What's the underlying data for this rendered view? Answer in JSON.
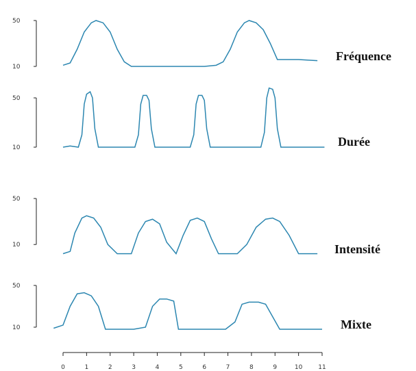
{
  "chart_data": [
    {
      "type": "line",
      "title": "Fréquence",
      "color": "#2b86b0",
      "x": [
        0,
        0.3,
        0.6,
        0.9,
        1.2,
        1.4,
        1.7,
        2.0,
        2.3,
        2.6,
        2.9,
        4,
        5,
        6,
        6.5,
        6.8,
        7.1,
        7.4,
        7.7,
        7.9,
        8.2,
        8.5,
        8.8,
        9.1,
        10,
        10.8
      ],
      "values": [
        11,
        13,
        25,
        40,
        48,
        50,
        48,
        40,
        25,
        14,
        10,
        10,
        10,
        10,
        11,
        14,
        25,
        40,
        48,
        50,
        48,
        42,
        30,
        16,
        16,
        15
      ],
      "xlim": [
        0,
        11
      ],
      "ylim": [
        5,
        55
      ],
      "yticks": [
        10,
        50
      ]
    },
    {
      "type": "line",
      "title": "Durée",
      "color": "#2b86b0",
      "x": [
        0,
        0.3,
        0.65,
        0.8,
        0.9,
        1.0,
        1.15,
        1.25,
        1.35,
        1.5,
        2.5,
        3.05,
        3.2,
        3.3,
        3.4,
        3.55,
        3.65,
        3.75,
        3.9,
        4.8,
        5.4,
        5.55,
        5.65,
        5.75,
        5.9,
        6.0,
        6.1,
        6.25,
        7.5,
        8.4,
        8.55,
        8.65,
        8.75,
        8.9,
        9.0,
        9.1,
        9.25,
        10,
        11.1
      ],
      "values": [
        10,
        11,
        10,
        20,
        45,
        53,
        55,
        50,
        25,
        10,
        10,
        10,
        20,
        45,
        52,
        52,
        48,
        25,
        10,
        10,
        10,
        20,
        45,
        52,
        52,
        48,
        25,
        10,
        10,
        10,
        22,
        50,
        58,
        57,
        50,
        25,
        10,
        10,
        10
      ],
      "xlim": [
        0,
        11
      ],
      "ylim": [
        5,
        60
      ],
      "yticks": [
        10,
        50
      ]
    },
    {
      "type": "line",
      "title": "Intensité",
      "color": "#2b86b0",
      "x": [
        0,
        0.3,
        0.5,
        0.8,
        1.0,
        1.3,
        1.6,
        1.9,
        2.3,
        2.9,
        3.2,
        3.5,
        3.8,
        4.1,
        4.4,
        4.8,
        5.1,
        5.4,
        5.7,
        6.0,
        6.3,
        6.6,
        7.4,
        7.8,
        8.2,
        8.6,
        8.9,
        9.2,
        9.6,
        10,
        10.8
      ],
      "values": [
        2,
        4,
        20,
        33,
        35,
        33,
        25,
        10,
        2,
        2,
        20,
        30,
        32,
        28,
        12,
        2,
        18,
        31,
        33,
        30,
        15,
        2,
        2,
        10,
        25,
        32,
        33,
        30,
        18,
        2,
        2
      ],
      "xlim": [
        0,
        11
      ],
      "ylim": [
        0,
        50
      ],
      "yticks": [
        10,
        50
      ]
    },
    {
      "type": "line",
      "title": "Mixte",
      "color": "#2b86b0",
      "x": [
        -0.4,
        0,
        0.3,
        0.6,
        0.9,
        1.2,
        1.5,
        1.8,
        3,
        3.5,
        3.8,
        4.1,
        4.4,
        4.7,
        4.9,
        6,
        6.9,
        7.3,
        7.6,
        7.9,
        8.3,
        8.6,
        8.9,
        9.2,
        11
      ],
      "values": [
        9,
        12,
        30,
        42,
        43,
        40,
        30,
        8,
        8,
        10,
        30,
        37,
        37,
        35,
        8,
        8,
        8,
        15,
        32,
        34,
        34,
        32,
        20,
        8,
        8
      ],
      "xlim": [
        0,
        11
      ],
      "ylim": [
        5,
        50
      ],
      "yticks": [
        10,
        50
      ],
      "xticks": [
        0,
        1,
        2,
        3,
        4,
        5,
        6,
        7,
        8,
        9,
        10,
        11
      ]
    }
  ]
}
